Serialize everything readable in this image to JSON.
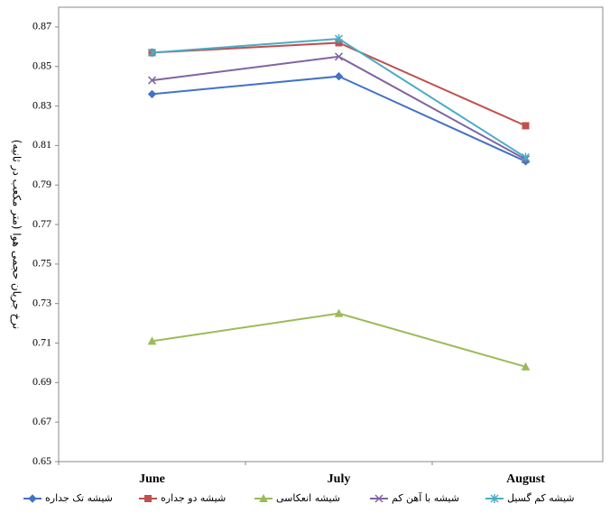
{
  "chart_data": {
    "type": "line",
    "y_label": "نرخ جریان حجمی هوا (متر مکعب در ثانیه)",
    "categories": [
      "June",
      "July",
      "August"
    ],
    "series": [
      {
        "name": "شیشه تک جداره",
        "color": "#4472c4",
        "marker": "diamond",
        "values": [
          0.836,
          0.845,
          0.802
        ]
      },
      {
        "name": "شیشه دو جداره",
        "color": "#c0504d",
        "marker": "square",
        "values": [
          0.857,
          0.862,
          0.82
        ]
      },
      {
        "name": "شیشه انعکاسی",
        "color": "#9bbb59",
        "marker": "triangle",
        "values": [
          0.711,
          0.725,
          0.698
        ]
      },
      {
        "name": "شیشه با آهن کم",
        "color": "#8064a2",
        "marker": "x",
        "values": [
          0.843,
          0.855,
          0.803
        ]
      },
      {
        "name": "شیشه کم گسیل",
        "color": "#4bacc6",
        "marker": "star",
        "values": [
          0.857,
          0.864,
          0.804
        ]
      }
    ],
    "ylim": [
      0.65,
      0.88
    ],
    "yticks": [
      0.65,
      0.67,
      0.69,
      0.71,
      0.73,
      0.75,
      0.77,
      0.79,
      0.81,
      0.83,
      0.85,
      0.87
    ],
    "grid": false,
    "legend": "bottom"
  }
}
